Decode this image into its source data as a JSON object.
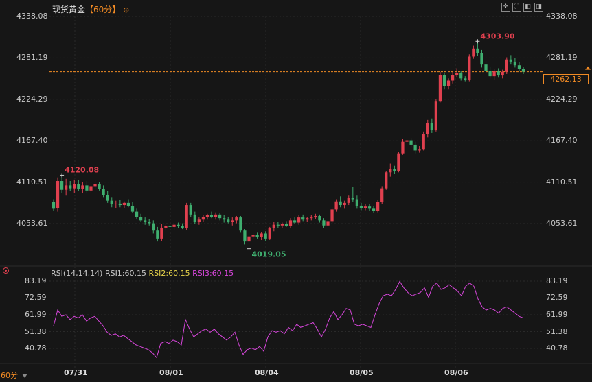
{
  "header": {
    "title": "现货黄金",
    "period_badge": "【60分】",
    "add_icon": "circle-plus-icon"
  },
  "toolbar": {
    "icons": [
      "crosshair-icon",
      "fullscreen-icon",
      "panel-left-icon",
      "panel-right-icon"
    ]
  },
  "footer": {
    "period_label": "60分",
    "period_menu_icon": "dropdown-icon"
  },
  "colors": {
    "background": "#161616",
    "up": "#e0404f",
    "down": "#3fae6f",
    "rsi": "#d846dc",
    "rsi2": "#e6d34a",
    "accent": "#f08a24",
    "grid": "#2a2a2a"
  },
  "chart_data": [
    {
      "type": "candlestick",
      "title": "现货黄金",
      "y_ticks": [
        "4338.08",
        "4281.19",
        "4224.29",
        "4167.40",
        "4110.51",
        "4053.61"
      ],
      "x_ticks": [
        "07/31",
        "08/01",
        "08/04",
        "08/05",
        "08/06"
      ],
      "ylim": [
        4015.0,
        4338.08
      ],
      "last_price": "4262.13",
      "annotations": {
        "high_1": "4120.08",
        "low": "4019.05",
        "high_max": "4303.90"
      },
      "grid": true,
      "candles": [
        {
          "o": 4083,
          "h": 4087,
          "l": 4071,
          "c": 4074
        },
        {
          "o": 4075,
          "h": 4117,
          "l": 4070,
          "c": 4112
        },
        {
          "o": 4112,
          "h": 4120.08,
          "l": 4096,
          "c": 4100
        },
        {
          "o": 4100,
          "h": 4115,
          "l": 4092,
          "c": 4106
        },
        {
          "o": 4106,
          "h": 4112,
          "l": 4098,
          "c": 4102
        },
        {
          "o": 4102,
          "h": 4114,
          "l": 4096,
          "c": 4108
        },
        {
          "o": 4108,
          "h": 4113,
          "l": 4098,
          "c": 4101
        },
        {
          "o": 4101,
          "h": 4111,
          "l": 4096,
          "c": 4106
        },
        {
          "o": 4106,
          "h": 4112,
          "l": 4096,
          "c": 4099
        },
        {
          "o": 4099,
          "h": 4110,
          "l": 4095,
          "c": 4105
        },
        {
          "o": 4105,
          "h": 4113,
          "l": 4101,
          "c": 4108
        },
        {
          "o": 4108,
          "h": 4111,
          "l": 4099,
          "c": 4101
        },
        {
          "o": 4101,
          "h": 4106,
          "l": 4090,
          "c": 4093
        },
        {
          "o": 4093,
          "h": 4098,
          "l": 4082,
          "c": 4085
        },
        {
          "o": 4085,
          "h": 4090,
          "l": 4076,
          "c": 4080
        },
        {
          "o": 4080,
          "h": 4085,
          "l": 4075,
          "c": 4081
        },
        {
          "o": 4081,
          "h": 4086,
          "l": 4076,
          "c": 4079
        },
        {
          "o": 4079,
          "h": 4084,
          "l": 4075,
          "c": 4082
        },
        {
          "o": 4082,
          "h": 4087,
          "l": 4076,
          "c": 4078
        },
        {
          "o": 4078,
          "h": 4083,
          "l": 4068,
          "c": 4070
        },
        {
          "o": 4070,
          "h": 4074,
          "l": 4060,
          "c": 4063
        },
        {
          "o": 4063,
          "h": 4067,
          "l": 4056,
          "c": 4058
        },
        {
          "o": 4058,
          "h": 4062,
          "l": 4052,
          "c": 4056
        },
        {
          "o": 4056,
          "h": 4060,
          "l": 4051,
          "c": 4054
        },
        {
          "o": 4054,
          "h": 4058,
          "l": 4040,
          "c": 4044
        },
        {
          "o": 4044,
          "h": 4049,
          "l": 4029,
          "c": 4033
        },
        {
          "o": 4033,
          "h": 4053,
          "l": 4030,
          "c": 4048
        },
        {
          "o": 4048,
          "h": 4053,
          "l": 4044,
          "c": 4050
        },
        {
          "o": 4050,
          "h": 4054,
          "l": 4046,
          "c": 4049
        },
        {
          "o": 4049,
          "h": 4054,
          "l": 4045,
          "c": 4052
        },
        {
          "o": 4052,
          "h": 4055,
          "l": 4047,
          "c": 4050
        },
        {
          "o": 4050,
          "h": 4054,
          "l": 4046,
          "c": 4047
        },
        {
          "o": 4047,
          "h": 4082,
          "l": 4045,
          "c": 4079
        },
        {
          "o": 4079,
          "h": 4082,
          "l": 4063,
          "c": 4066
        },
        {
          "o": 4066,
          "h": 4070,
          "l": 4053,
          "c": 4056
        },
        {
          "o": 4056,
          "h": 4062,
          "l": 4052,
          "c": 4059
        },
        {
          "o": 4059,
          "h": 4065,
          "l": 4056,
          "c": 4063
        },
        {
          "o": 4063,
          "h": 4067,
          "l": 4059,
          "c": 4065
        },
        {
          "o": 4065,
          "h": 4070,
          "l": 4061,
          "c": 4063
        },
        {
          "o": 4063,
          "h": 4069,
          "l": 4059,
          "c": 4066
        },
        {
          "o": 4066,
          "h": 4068,
          "l": 4058,
          "c": 4061
        },
        {
          "o": 4061,
          "h": 4065,
          "l": 4055,
          "c": 4059
        },
        {
          "o": 4059,
          "h": 4063,
          "l": 4054,
          "c": 4056
        },
        {
          "o": 4056,
          "h": 4062,
          "l": 4051,
          "c": 4058
        },
        {
          "o": 4058,
          "h": 4064,
          "l": 4054,
          "c": 4062
        },
        {
          "o": 4062,
          "h": 4064,
          "l": 4041,
          "c": 4044
        },
        {
          "o": 4044,
          "h": 4046,
          "l": 4025,
          "c": 4029
        },
        {
          "o": 4029,
          "h": 4039,
          "l": 4019.05,
          "c": 4036
        },
        {
          "o": 4036,
          "h": 4040,
          "l": 4032,
          "c": 4038
        },
        {
          "o": 4038,
          "h": 4041,
          "l": 4033,
          "c": 4035
        },
        {
          "o": 4035,
          "h": 4042,
          "l": 4031,
          "c": 4040
        },
        {
          "o": 4040,
          "h": 4043,
          "l": 4030,
          "c": 4033
        },
        {
          "o": 4033,
          "h": 4049,
          "l": 4031,
          "c": 4047
        },
        {
          "o": 4047,
          "h": 4056,
          "l": 4043,
          "c": 4052
        },
        {
          "o": 4052,
          "h": 4056,
          "l": 4048,
          "c": 4051
        },
        {
          "o": 4051,
          "h": 4055,
          "l": 4047,
          "c": 4053
        },
        {
          "o": 4053,
          "h": 4057,
          "l": 4049,
          "c": 4050
        },
        {
          "o": 4050,
          "h": 4061,
          "l": 4047,
          "c": 4058
        },
        {
          "o": 4058,
          "h": 4062,
          "l": 4053,
          "c": 4055
        },
        {
          "o": 4055,
          "h": 4065,
          "l": 4052,
          "c": 4062
        },
        {
          "o": 4062,
          "h": 4066,
          "l": 4057,
          "c": 4059
        },
        {
          "o": 4059,
          "h": 4063,
          "l": 4056,
          "c": 4061
        },
        {
          "o": 4061,
          "h": 4065,
          "l": 4058,
          "c": 4062
        },
        {
          "o": 4062,
          "h": 4067,
          "l": 4060,
          "c": 4064
        },
        {
          "o": 4064,
          "h": 4066,
          "l": 4055,
          "c": 4058
        },
        {
          "o": 4058,
          "h": 4061,
          "l": 4048,
          "c": 4051
        },
        {
          "o": 4051,
          "h": 4059,
          "l": 4049,
          "c": 4057
        },
        {
          "o": 4057,
          "h": 4076,
          "l": 4054,
          "c": 4073
        },
        {
          "o": 4073,
          "h": 4087,
          "l": 4070,
          "c": 4084
        },
        {
          "o": 4084,
          "h": 4091,
          "l": 4076,
          "c": 4079
        },
        {
          "o": 4079,
          "h": 4085,
          "l": 4074,
          "c": 4082
        },
        {
          "o": 4082,
          "h": 4092,
          "l": 4079,
          "c": 4089
        },
        {
          "o": 4089,
          "h": 4104,
          "l": 4083,
          "c": 4087
        },
        {
          "o": 4087,
          "h": 4092,
          "l": 4074,
          "c": 4078
        },
        {
          "o": 4078,
          "h": 4082,
          "l": 4072,
          "c": 4075
        },
        {
          "o": 4075,
          "h": 4080,
          "l": 4072,
          "c": 4077
        },
        {
          "o": 4077,
          "h": 4080,
          "l": 4071,
          "c": 4074
        },
        {
          "o": 4074,
          "h": 4078,
          "l": 4068,
          "c": 4071
        },
        {
          "o": 4071,
          "h": 4086,
          "l": 4069,
          "c": 4083
        },
        {
          "o": 4083,
          "h": 4105,
          "l": 4080,
          "c": 4102
        },
        {
          "o": 4102,
          "h": 4126,
          "l": 4100,
          "c": 4124
        },
        {
          "o": 4124,
          "h": 4136,
          "l": 4118,
          "c": 4128
        },
        {
          "o": 4128,
          "h": 4133,
          "l": 4122,
          "c": 4126
        },
        {
          "o": 4126,
          "h": 4152,
          "l": 4124,
          "c": 4150
        },
        {
          "o": 4150,
          "h": 4170,
          "l": 4148,
          "c": 4166
        },
        {
          "o": 4166,
          "h": 4172,
          "l": 4160,
          "c": 4168
        },
        {
          "o": 4168,
          "h": 4171,
          "l": 4158,
          "c": 4162
        },
        {
          "o": 4162,
          "h": 4166,
          "l": 4150,
          "c": 4154
        },
        {
          "o": 4154,
          "h": 4160,
          "l": 4151,
          "c": 4156
        },
        {
          "o": 4156,
          "h": 4180,
          "l": 4154,
          "c": 4177
        },
        {
          "o": 4177,
          "h": 4196,
          "l": 4172,
          "c": 4192
        },
        {
          "o": 4192,
          "h": 4198,
          "l": 4178,
          "c": 4182
        },
        {
          "o": 4182,
          "h": 4224,
          "l": 4180,
          "c": 4222
        },
        {
          "o": 4222,
          "h": 4262,
          "l": 4220,
          "c": 4258
        },
        {
          "o": 4258,
          "h": 4261,
          "l": 4238,
          "c": 4242
        },
        {
          "o": 4242,
          "h": 4253,
          "l": 4238,
          "c": 4250
        },
        {
          "o": 4250,
          "h": 4262,
          "l": 4246,
          "c": 4258
        },
        {
          "o": 4258,
          "h": 4267,
          "l": 4255,
          "c": 4260
        },
        {
          "o": 4260,
          "h": 4263,
          "l": 4250,
          "c": 4253
        },
        {
          "o": 4253,
          "h": 4256,
          "l": 4249,
          "c": 4251
        },
        {
          "o": 4251,
          "h": 4286,
          "l": 4249,
          "c": 4283
        },
        {
          "o": 4283,
          "h": 4298,
          "l": 4280,
          "c": 4294
        },
        {
          "o": 4294,
          "h": 4303.9,
          "l": 4284,
          "c": 4288
        },
        {
          "o": 4288,
          "h": 4292,
          "l": 4268,
          "c": 4272
        },
        {
          "o": 4272,
          "h": 4277,
          "l": 4259,
          "c": 4263
        },
        {
          "o": 4263,
          "h": 4269,
          "l": 4253,
          "c": 4256
        },
        {
          "o": 4256,
          "h": 4266,
          "l": 4251,
          "c": 4263
        },
        {
          "o": 4263,
          "h": 4267,
          "l": 4254,
          "c": 4257
        },
        {
          "o": 4257,
          "h": 4265,
          "l": 4253,
          "c": 4262
        },
        {
          "o": 4262,
          "h": 4282,
          "l": 4259,
          "c": 4279
        },
        {
          "o": 4279,
          "h": 4285,
          "l": 4272,
          "c": 4276
        },
        {
          "o": 4276,
          "h": 4281,
          "l": 4268,
          "c": 4271
        },
        {
          "o": 4271,
          "h": 4275,
          "l": 4263,
          "c": 4266
        },
        {
          "o": 4266,
          "h": 4269,
          "l": 4259,
          "c": 4262.13
        }
      ]
    },
    {
      "type": "line",
      "legend": {
        "name": "RSI(14,14,14)",
        "rsi1": "RSI1:60.15",
        "rsi2": "RSI2:60.15",
        "rsi3": "RSI3:60.15"
      },
      "y_ticks": [
        "83.19",
        "72.59",
        "61.99",
        "51.38",
        "40.78"
      ],
      "ylim": [
        34.0,
        86.0
      ],
      "series": [
        {
          "values": [
            55,
            65,
            61,
            62,
            59,
            61,
            60,
            62,
            58,
            60,
            61,
            58,
            55,
            51,
            49,
            50,
            48,
            49,
            47,
            45,
            43,
            42,
            41,
            40,
            38,
            35,
            44,
            45,
            44,
            46,
            45,
            43,
            59,
            53,
            48,
            50,
            52,
            53,
            51,
            53,
            50,
            48,
            46,
            48,
            51,
            43,
            37,
            40,
            41,
            40,
            42,
            39,
            48,
            52,
            51,
            52,
            50,
            54,
            52,
            56,
            54,
            55,
            56,
            57,
            53,
            48,
            53,
            60,
            64,
            59,
            62,
            66,
            65,
            56,
            55,
            56,
            55,
            54,
            62,
            69,
            74,
            75,
            74,
            78,
            83,
            79,
            76,
            74,
            75,
            76,
            79,
            73,
            80,
            82,
            78,
            79,
            81,
            79,
            77,
            74,
            80,
            82,
            80,
            72,
            67,
            65,
            66,
            65,
            63,
            66,
            67,
            65,
            63,
            61,
            60
          ]
        }
      ]
    }
  ]
}
